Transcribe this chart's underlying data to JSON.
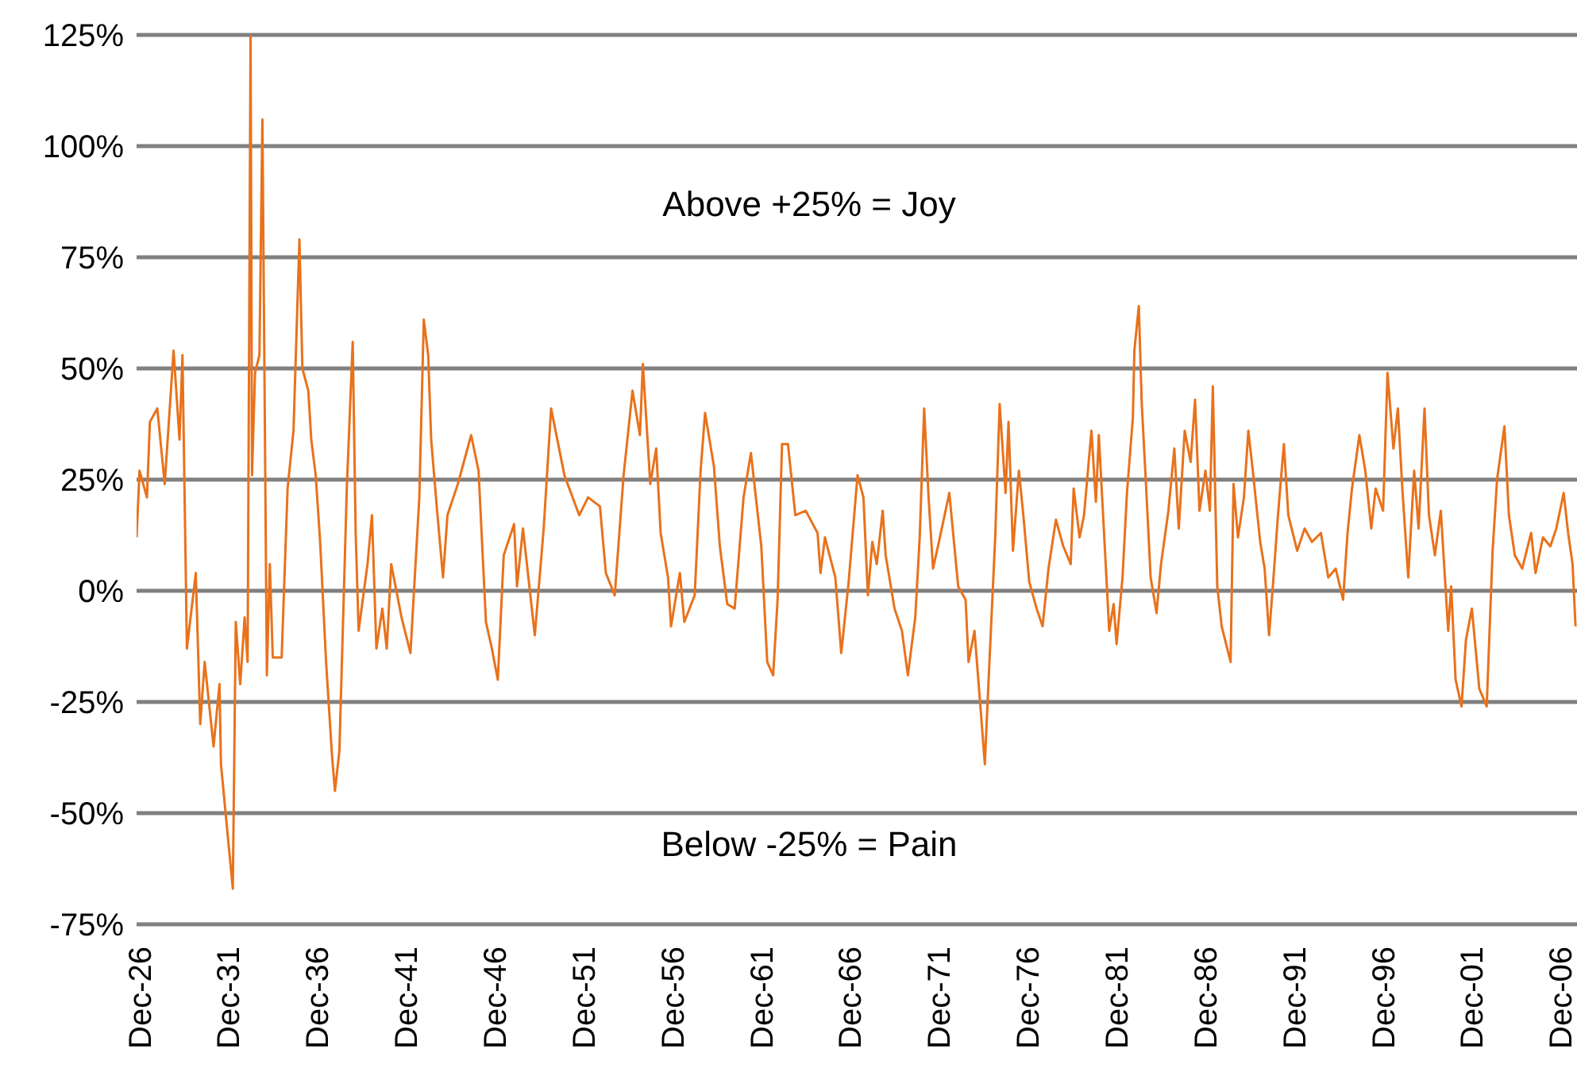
{
  "chart_data": {
    "type": "line",
    "annotations": [
      "Above +25% = Joy",
      "Below  -25% = Pain"
    ],
    "x": [
      "1926-09",
      "1926-11",
      "1927-04",
      "1927-06",
      "1927-11",
      "1928-04",
      "1928-10",
      "1929-02",
      "1929-04",
      "1929-07",
      "1930-01",
      "1930-04",
      "1930-07",
      "1931-01",
      "1931-05",
      "1931-06",
      "1931-10",
      "1932-02",
      "1932-04",
      "1932-07",
      "1932-10",
      "1932-12",
      "1933-02",
      "1933-03",
      "1933-05",
      "1933-08",
      "1933-10",
      "1934-01",
      "1934-03",
      "1934-05",
      "1934-11",
      "1935-03",
      "1935-07",
      "1935-11",
      "1936-01",
      "1936-05",
      "1936-07",
      "1936-10",
      "1937-01",
      "1937-05",
      "1937-09",
      "1937-11",
      "1938-02",
      "1938-07",
      "1938-11",
      "1939-01",
      "1939-03",
      "1939-09",
      "1939-12",
      "1940-03",
      "1940-07",
      "1940-10",
      "1941-01",
      "1941-08",
      "1942-02",
      "1942-08",
      "1942-11",
      "1943-02",
      "1943-04",
      "1943-08",
      "1943-12",
      "1944-03",
      "1944-10",
      "1945-07",
      "1945-12",
      "1946-05",
      "1946-09",
      "1947-01",
      "1947-05",
      "1947-12",
      "1948-02",
      "1948-06",
      "1949-02",
      "1949-08",
      "1950-01",
      "1950-10",
      "1951-08",
      "1952-02",
      "1952-10",
      "1953-02",
      "1953-08",
      "1954-02",
      "1954-08",
      "1955-01",
      "1955-03",
      "1955-08",
      "1955-12",
      "1956-03",
      "1956-08",
      "1956-10",
      "1957-04",
      "1957-07",
      "1958-02",
      "1958-06",
      "1958-09",
      "1959-03",
      "1959-07",
      "1959-12",
      "1960-05",
      "1960-11",
      "1961-04",
      "1961-11",
      "1962-03",
      "1962-07",
      "1962-10",
      "1963-01",
      "1963-05",
      "1963-10",
      "1964-05",
      "1965-01",
      "1965-03",
      "1965-06",
      "1966-01",
      "1966-05",
      "1966-10",
      "1967-04",
      "1967-08",
      "1967-11",
      "1968-02",
      "1968-05",
      "1968-09",
      "1968-11",
      "1969-05",
      "1969-10",
      "1970-02",
      "1970-07",
      "1970-10",
      "1971-01",
      "1971-04",
      "1971-07",
      "1971-11",
      "1972-06",
      "1972-12",
      "1973-05",
      "1973-07",
      "1973-11",
      "1974-03",
      "1974-06",
      "1974-08",
      "1975-01",
      "1975-04",
      "1975-08",
      "1975-10",
      "1976-01",
      "1976-05",
      "1976-08",
      "1976-12",
      "1977-05",
      "1977-09",
      "1978-01",
      "1978-06",
      "1978-11",
      "1979-04",
      "1979-06",
      "1979-10",
      "1980-01",
      "1980-06",
      "1980-09",
      "1980-11",
      "1981-03",
      "1981-06",
      "1981-09",
      "1981-11",
      "1982-03",
      "1982-06",
      "1982-10",
      "1982-11",
      "1983-02",
      "1983-04",
      "1983-07",
      "1983-10",
      "1984-02",
      "1984-05",
      "1984-10",
      "1985-02",
      "1985-05",
      "1985-09",
      "1986-01",
      "1986-04",
      "1986-07",
      "1986-11",
      "1987-02",
      "1987-04",
      "1987-07",
      "1987-10",
      "1988-04",
      "1988-06",
      "1988-09",
      "1989-01",
      "1989-04",
      "1989-07",
      "1989-12",
      "1990-03",
      "1990-06",
      "1990-09",
      "1990-12",
      "1991-04",
      "1991-07",
      "1992-01",
      "1992-06",
      "1992-11",
      "1993-05",
      "1993-10",
      "1994-03",
      "1994-08",
      "1994-11",
      "1995-02",
      "1995-07",
      "1995-11",
      "1996-03",
      "1996-06",
      "1996-11",
      "1997-02",
      "1997-06",
      "1997-09",
      "1997-12",
      "1998-04",
      "1998-08",
      "1998-11",
      "1999-03",
      "1999-06",
      "1999-10",
      "2000-02",
      "2000-07",
      "2000-09",
      "2000-12",
      "2001-04",
      "2001-07",
      "2001-11",
      "2002-04",
      "2002-09",
      "2003-01",
      "2003-04",
      "2003-09",
      "2003-12",
      "2004-04",
      "2004-09",
      "2005-03",
      "2005-06",
      "2005-11",
      "2006-04",
      "2006-08",
      "2007-01",
      "2007-04",
      "2007-07",
      "2007-09"
    ],
    "series": [
      {
        "color": "#e8721c",
        "values": [
          12,
          27,
          21,
          38,
          41,
          24,
          54,
          34,
          53,
          -13,
          4,
          -30,
          -16,
          -35,
          -21,
          -39,
          -53,
          -67,
          -7,
          -21,
          -6,
          -16,
          125,
          26,
          49,
          53,
          106,
          -19,
          6,
          -15,
          -15,
          23,
          36,
          79,
          50,
          45,
          34,
          26,
          11,
          -16,
          -37,
          -45,
          -36,
          23,
          56,
          13,
          -9,
          6,
          17,
          -13,
          -4,
          -13,
          6,
          -6,
          -14,
          21,
          61,
          53,
          34,
          18,
          3,
          17,
          24,
          35,
          27,
          -7,
          -13,
          -20,
          8,
          15,
          1,
          14,
          -10,
          14,
          41,
          26,
          17,
          21,
          19,
          4,
          -1,
          26,
          45,
          35,
          51,
          24,
          32,
          13,
          3,
          -8,
          4,
          -7,
          -1,
          27,
          40,
          28,
          10,
          -3,
          -4,
          21,
          31,
          10,
          -16,
          -19,
          -2,
          33,
          33,
          17,
          18,
          13,
          4,
          12,
          3,
          -14,
          2,
          26,
          21,
          -1,
          11,
          6,
          18,
          8,
          -4,
          -9,
          -19,
          -6,
          12,
          41,
          21,
          5,
          11,
          22,
          1,
          -2,
          -16,
          -9,
          -26,
          -39,
          -24,
          12,
          42,
          22,
          38,
          9,
          27,
          17,
          2,
          -4,
          -8,
          5,
          16,
          10,
          6,
          23,
          12,
          17,
          36,
          20,
          35,
          10,
          -9,
          -3,
          -12,
          3,
          22,
          39,
          54,
          64,
          42,
          23,
          3,
          -5,
          6,
          18,
          32,
          14,
          36,
          29,
          43,
          18,
          27,
          18,
          46,
          1,
          -8,
          -16,
          24,
          12,
          21,
          36,
          27,
          11,
          5,
          -10,
          3,
          17,
          33,
          17,
          9,
          14,
          11,
          13,
          3,
          5,
          -2,
          13,
          23,
          35,
          27,
          14,
          23,
          18,
          49,
          32,
          41,
          23,
          3,
          27,
          14,
          41,
          17,
          8,
          18,
          -9,
          1,
          -20,
          -26,
          -11,
          -4,
          -22,
          -26,
          9,
          25,
          37,
          17,
          8,
          5,
          13,
          4,
          12,
          10,
          14,
          22,
          13,
          6,
          -8
        ]
      }
    ],
    "xlim": [
      "1926-09",
      "2007-10"
    ],
    "xticks": [
      {
        "value": "1926-12",
        "label": "Dec-26"
      },
      {
        "value": "1931-12",
        "label": "Dec-31"
      },
      {
        "value": "1936-12",
        "label": "Dec-36"
      },
      {
        "value": "1941-12",
        "label": "Dec-41"
      },
      {
        "value": "1946-12",
        "label": "Dec-46"
      },
      {
        "value": "1951-12",
        "label": "Dec-51"
      },
      {
        "value": "1956-12",
        "label": "Dec-56"
      },
      {
        "value": "1961-12",
        "label": "Dec-61"
      },
      {
        "value": "1966-12",
        "label": "Dec-66"
      },
      {
        "value": "1971-12",
        "label": "Dec-71"
      },
      {
        "value": "1976-12",
        "label": "Dec-76"
      },
      {
        "value": "1981-12",
        "label": "Dec-81"
      },
      {
        "value": "1986-12",
        "label": "Dec-86"
      },
      {
        "value": "1991-12",
        "label": "Dec-91"
      },
      {
        "value": "1996-12",
        "label": "Dec-96"
      },
      {
        "value": "2001-12",
        "label": "Dec-01"
      },
      {
        "value": "2006-12",
        "label": "Dec-06"
      }
    ],
    "ylim": [
      -75,
      125
    ],
    "yticks": [
      {
        "value": -75,
        "label": "-75%"
      },
      {
        "value": -50,
        "label": "-50%"
      },
      {
        "value": -25,
        "label": "-25%"
      },
      {
        "value": 0,
        "label": "0%"
      },
      {
        "value": 25,
        "label": "25%"
      },
      {
        "value": 50,
        "label": "50%"
      },
      {
        "value": 75,
        "label": "75%"
      },
      {
        "value": 100,
        "label": "100%"
      },
      {
        "value": 125,
        "label": "125%"
      }
    ],
    "grid": "y",
    "legend": false,
    "marker": "none",
    "line_style": "solid"
  }
}
